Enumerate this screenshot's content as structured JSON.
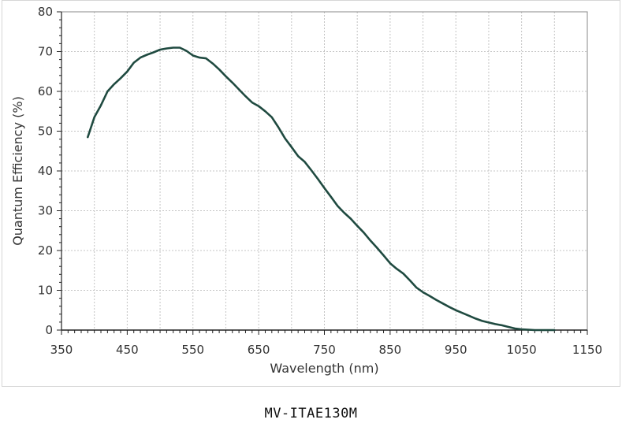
{
  "caption": "MV-ITAE130M",
  "chart_data": {
    "type": "line",
    "title": "",
    "xlabel": "Wavelength (nm)",
    "ylabel": "Quantum Efficiency (%)",
    "xlim": [
      350,
      1150
    ],
    "ylim": [
      0,
      80
    ],
    "xticks": [
      350,
      450,
      550,
      650,
      750,
      850,
      950,
      1050,
      1150
    ],
    "yticks": [
      0,
      10,
      20,
      30,
      40,
      50,
      60,
      70,
      80
    ],
    "grid": true,
    "legend": "none",
    "line_color": "#1f4a40",
    "series": [
      {
        "x": [
          390,
          400,
          410,
          420,
          430,
          440,
          450,
          460,
          470,
          480,
          490,
          500,
          510,
          520,
          530,
          540,
          550,
          560,
          570,
          580,
          590,
          600,
          610,
          620,
          630,
          640,
          650,
          660,
          670,
          680,
          690,
          700,
          710,
          720,
          730,
          740,
          750,
          760,
          770,
          780,
          790,
          800,
          810,
          820,
          830,
          840,
          850,
          860,
          870,
          880,
          890,
          900,
          910,
          920,
          930,
          940,
          950,
          960,
          970,
          980,
          990,
          1000,
          1010,
          1020,
          1030,
          1040,
          1050,
          1060,
          1070,
          1080,
          1090,
          1100
        ],
        "y": [
          48.5,
          53.5,
          56.5,
          60,
          61.8,
          63.3,
          65,
          67.2,
          68.5,
          69.2,
          69.8,
          70.5,
          70.8,
          71,
          71,
          70.2,
          69,
          68.5,
          68.3,
          67,
          65.5,
          63.8,
          62.2,
          60.5,
          58.8,
          57.2,
          56.3,
          55,
          53.5,
          51,
          48.2,
          46,
          43.7,
          42.3,
          40.2,
          38,
          35.7,
          33.5,
          31.2,
          29.5,
          28,
          26.2,
          24.5,
          22.5,
          20.7,
          18.8,
          16.8,
          15.4,
          14.2,
          12.5,
          10.7,
          9.5,
          8.6,
          7.6,
          6.7,
          5.8,
          5,
          4.3,
          3.6,
          2.9,
          2.3,
          1.9,
          1.5,
          1.2,
          0.8,
          0.4,
          0.2,
          0.1,
          0,
          0,
          0,
          0
        ]
      }
    ]
  }
}
